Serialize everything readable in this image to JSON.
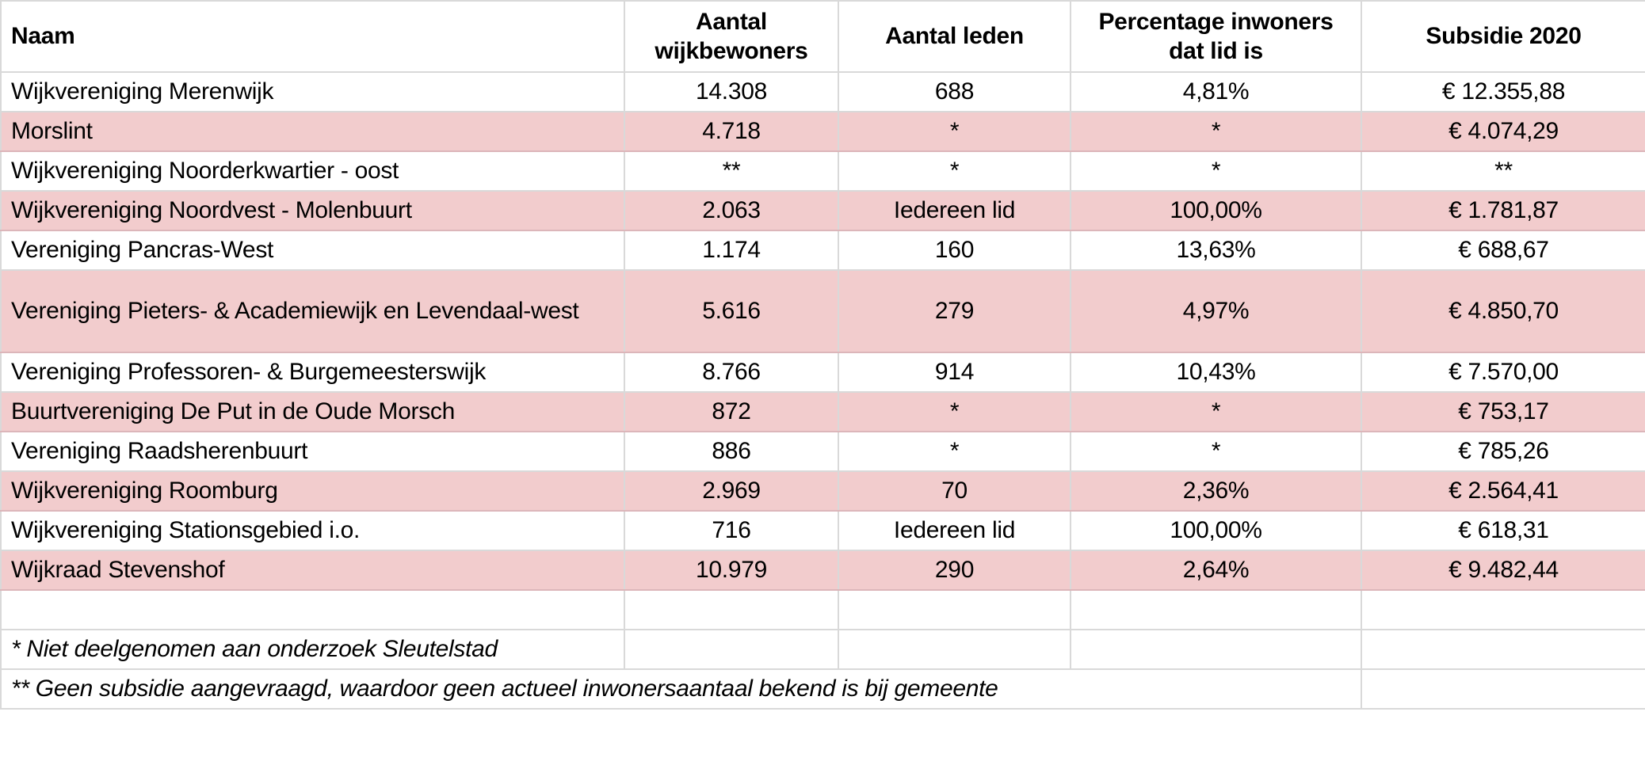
{
  "table": {
    "columns": [
      "Naam",
      "Aantal wijkbewoners",
      "Aantal leden",
      "Percentage inwoners dat lid is",
      "Subsidie 2020"
    ],
    "rows": [
      {
        "name": "Wijkvereniging Merenwijk",
        "residents": "14.308",
        "members": "688",
        "percentage": "4,81%",
        "subsidy": "€ 12.355,88"
      },
      {
        "name": "Morslint",
        "residents": "4.718",
        "members": "*",
        "percentage": "*",
        "subsidy": "€ 4.074,29"
      },
      {
        "name": "Wijkvereniging Noorderkwartier - oost",
        "residents": "**",
        "members": "*",
        "percentage": "*",
        "subsidy": "**"
      },
      {
        "name": "Wijkvereniging Noordvest - Molenbuurt",
        "residents": "2.063",
        "members": "Iedereen lid",
        "percentage": "100,00%",
        "subsidy": "€ 1.781,87"
      },
      {
        "name": "Vereniging Pancras-West",
        "residents": "1.174",
        "members": "160",
        "percentage": "13,63%",
        "subsidy": "€ 688,67"
      },
      {
        "name": "Vereniging Pieters- & Academiewijk en Levendaal-west",
        "residents": "5.616",
        "members": "279",
        "percentage": "4,97%",
        "subsidy": "€ 4.850,70"
      },
      {
        "name": "Vereniging Professoren- & Burgemeesterswijk",
        "residents": "8.766",
        "members": "914",
        "percentage": "10,43%",
        "subsidy": "€ 7.570,00"
      },
      {
        "name": "Buurtvereniging De Put in de Oude Morsch",
        "residents": "872",
        "members": "*",
        "percentage": "*",
        "subsidy": "€ 753,17"
      },
      {
        "name": "Vereniging Raadsherenbuurt",
        "residents": "886",
        "members": "*",
        "percentage": "*",
        "subsidy": "€ 785,26"
      },
      {
        "name": "Wijkvereniging Roomburg",
        "residents": "2.969",
        "members": "70",
        "percentage": "2,36%",
        "subsidy": "€ 2.564,41"
      },
      {
        "name": "Wijkvereniging Stationsgebied i.o.",
        "residents": "716",
        "members": "Iedereen lid",
        "percentage": "100,00%",
        "subsidy": "€ 618,31"
      },
      {
        "name": "Wijkraad Stevenshof",
        "residents": "10.979",
        "members": "290",
        "percentage": "2,64%",
        "subsidy": "€ 9.482,44"
      }
    ],
    "footnotes": {
      "note1": "* Niet deelgenomen aan onderzoek Sleutelstad",
      "note2": "** Geen subsidie aangevraagd, waardoor geen actueel inwonersaantaal bekend is bij gemeente"
    },
    "colors": {
      "highlight_row": "#f2cccd",
      "gridline": "#d9d9d9",
      "highlight_gridline": "#dcb6ba"
    }
  }
}
